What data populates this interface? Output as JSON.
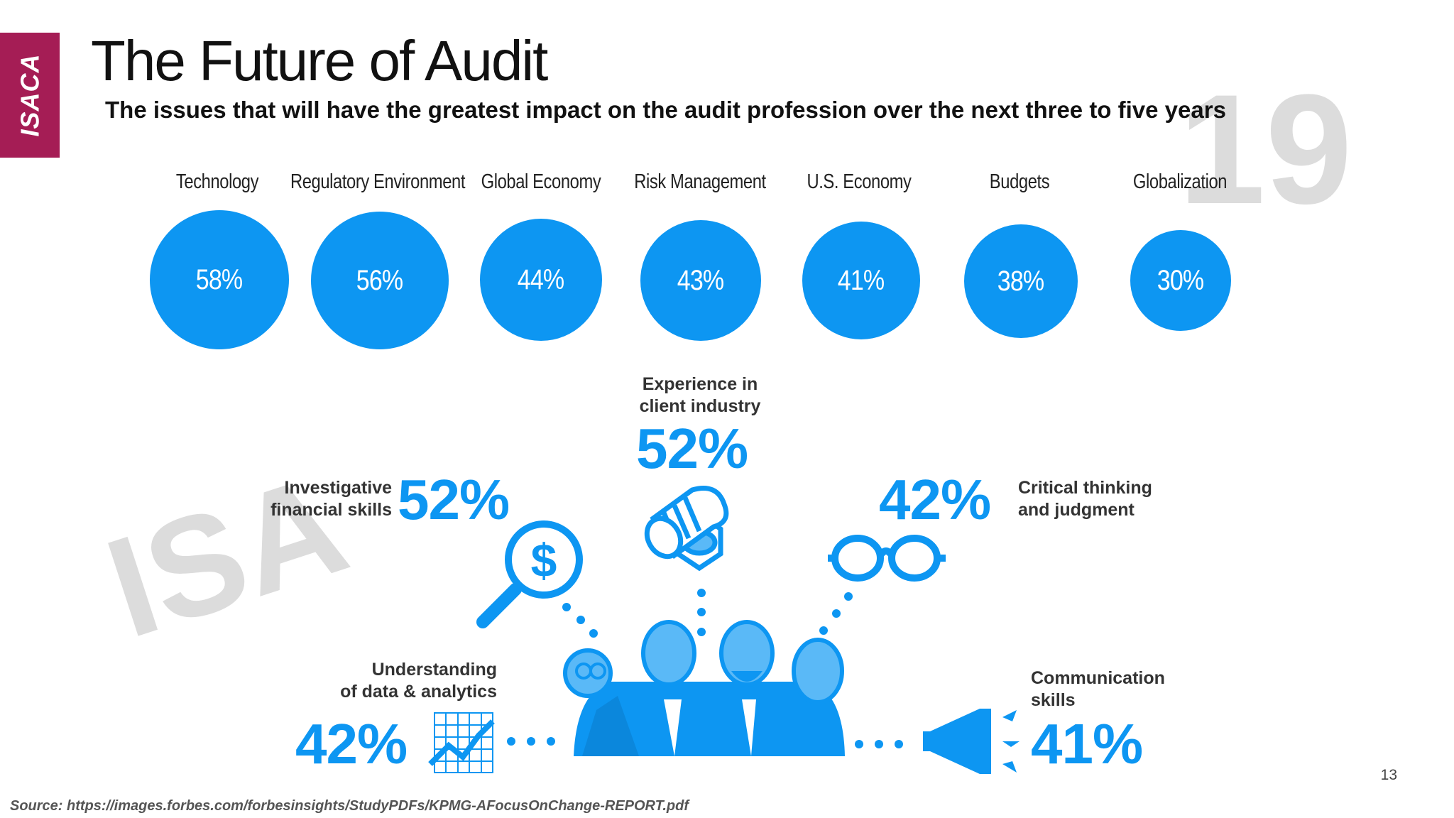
{
  "brand": {
    "logo_text": "ISACA",
    "color": "#a51d55"
  },
  "title": "The Future of Audit",
  "subtitle": "The issues that will have the greatest impact on the audit profession over the next three to five years",
  "accent_color": "#0d96f2",
  "issues": [
    {
      "label": "Technology",
      "percent": "58%",
      "value": 58
    },
    {
      "label": "Regulatory Environment",
      "percent": "56%",
      "value": 56
    },
    {
      "label": "Global Economy",
      "percent": "44%",
      "value": 44
    },
    {
      "label": "Risk Management",
      "percent": "43%",
      "value": 43
    },
    {
      "label": "U.S. Economy",
      "percent": "41%",
      "value": 41
    },
    {
      "label": "Budgets",
      "percent": "38%",
      "value": 38
    },
    {
      "label": "Globalization",
      "percent": "30%",
      "value": 30
    }
  ],
  "skills": [
    {
      "label_line1": "Experience in",
      "label_line2": "client industry",
      "percent": "52%",
      "icon": "screw-icon"
    },
    {
      "label_line1": "Investigative",
      "label_line2": "financial skills",
      "percent": "52%",
      "icon": "magnifier-dollar-icon"
    },
    {
      "label_line1": "Critical thinking",
      "label_line2": "and judgment",
      "percent": "42%",
      "icon": "glasses-icon"
    },
    {
      "label_line1": "Understanding",
      "label_line2": "of data & analytics",
      "percent": "42%",
      "icon": "chart-grid-icon"
    },
    {
      "label_line1": "Communication",
      "label_line2": "skills",
      "percent": "41%",
      "icon": "megaphone-icon"
    }
  ],
  "center_icon": "people-group-icon",
  "watermark": {
    "top_right": "19",
    "left": "ISA"
  },
  "page_number": "13",
  "source": "Source: https://images.forbes.com/forbesinsights/StudyPDFs/KPMG-AFocusOnChange-REPORT.pdf"
}
